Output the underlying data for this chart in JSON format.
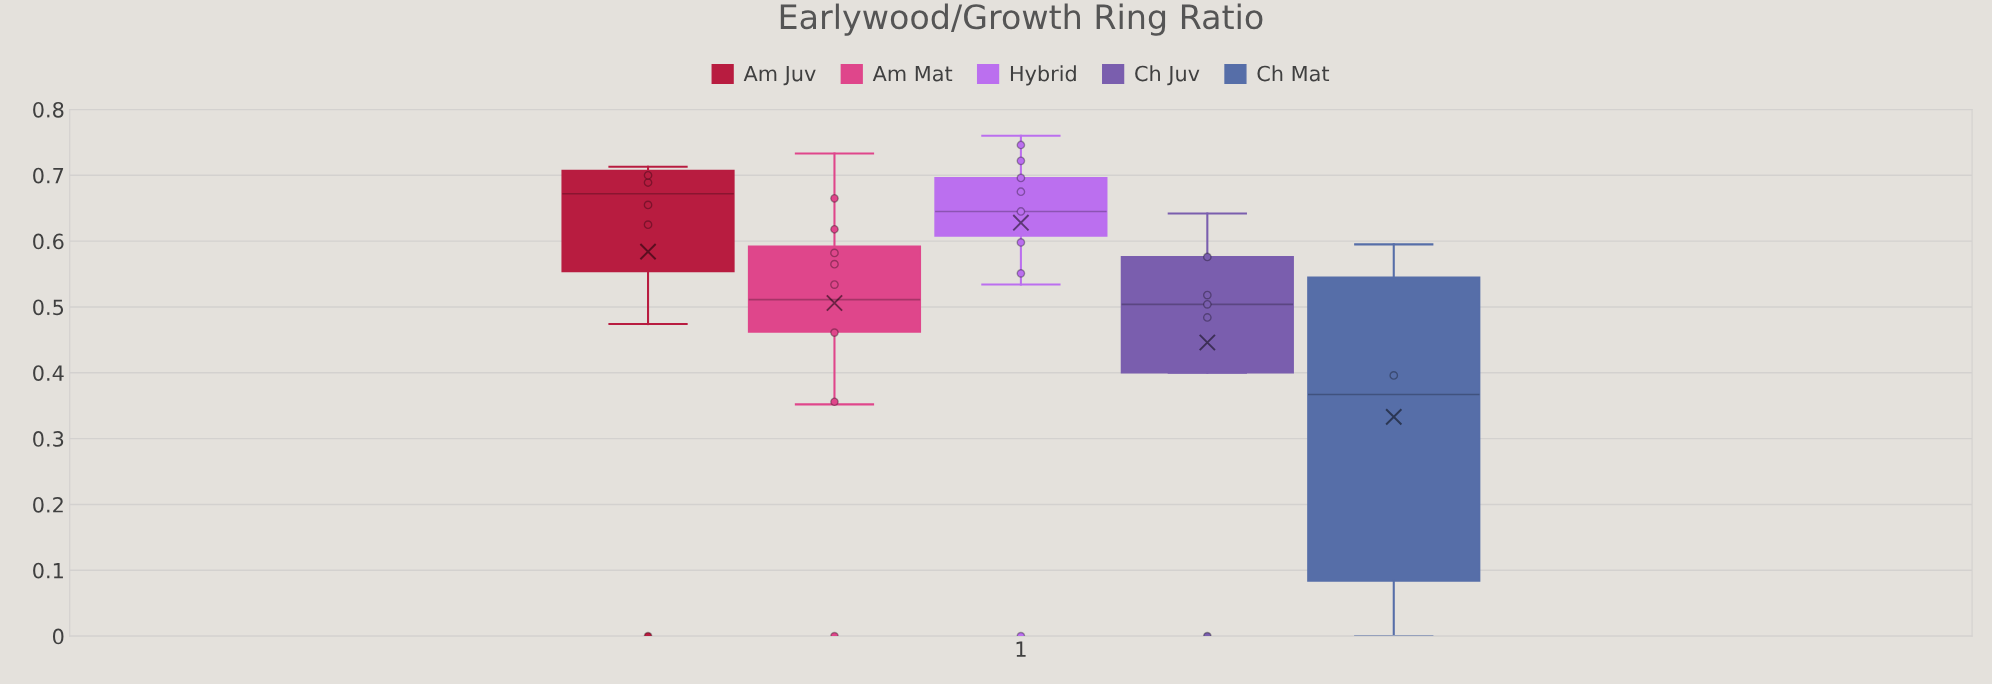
{
  "chart_data": {
    "type": "box",
    "title": "Earlywood/Growth Ring Ratio",
    "categories": [
      "1"
    ],
    "ylim": [
      0,
      0.8
    ],
    "yticks": [
      0,
      0.1,
      0.2,
      0.3,
      0.4,
      0.5,
      0.6,
      0.7,
      0.8
    ],
    "grid": "y",
    "legend": "top",
    "marker": "circle",
    "series": [
      {
        "name": "Am Juv",
        "color": "#b81c40",
        "boxes": [
          {
            "low": 0.474,
            "q1": 0.554,
            "median": 0.672,
            "q3": 0.707,
            "high": 0.713,
            "mean": 0.584,
            "outliers": [
              0,
              0.625,
              0.655,
              0.689,
              0.7
            ]
          }
        ]
      },
      {
        "name": "Am Mat",
        "color": "#df468b",
        "boxes": [
          {
            "low": 0.352,
            "q1": 0.462,
            "median": 0.511,
            "q3": 0.592,
            "high": 0.733,
            "mean": 0.506,
            "outliers": [
              0,
              0.356,
              0.461,
              0.534,
              0.565,
              0.582,
              0.618,
              0.665
            ]
          }
        ]
      },
      {
        "name": "Hybrid",
        "color": "#bb6fef",
        "boxes": [
          {
            "low": 0.534,
            "q1": 0.608,
            "median": 0.645,
            "q3": 0.696,
            "high": 0.76,
            "mean": 0.628,
            "outliers": [
              0,
              0.551,
              0.598,
              0.645,
              0.675,
              0.696,
              0.722,
              0.746
            ]
          }
        ]
      },
      {
        "name": "Ch Juv",
        "color": "#7a5eae",
        "boxes": [
          {
            "low": 0.4,
            "q1": 0.4,
            "median": 0.504,
            "q3": 0.576,
            "high": 0.642,
            "mean": 0.446,
            "outliers": [
              0,
              0.484,
              0.504,
              0.518,
              0.576
            ]
          }
        ]
      },
      {
        "name": "Ch Mat",
        "color": "#566ea8",
        "boxes": [
          {
            "low": 0,
            "q1": 0.084,
            "median": 0.367,
            "q3": 0.545,
            "high": 0.595,
            "mean": 0.333,
            "outliers": [
              0.396
            ]
          }
        ]
      }
    ]
  }
}
